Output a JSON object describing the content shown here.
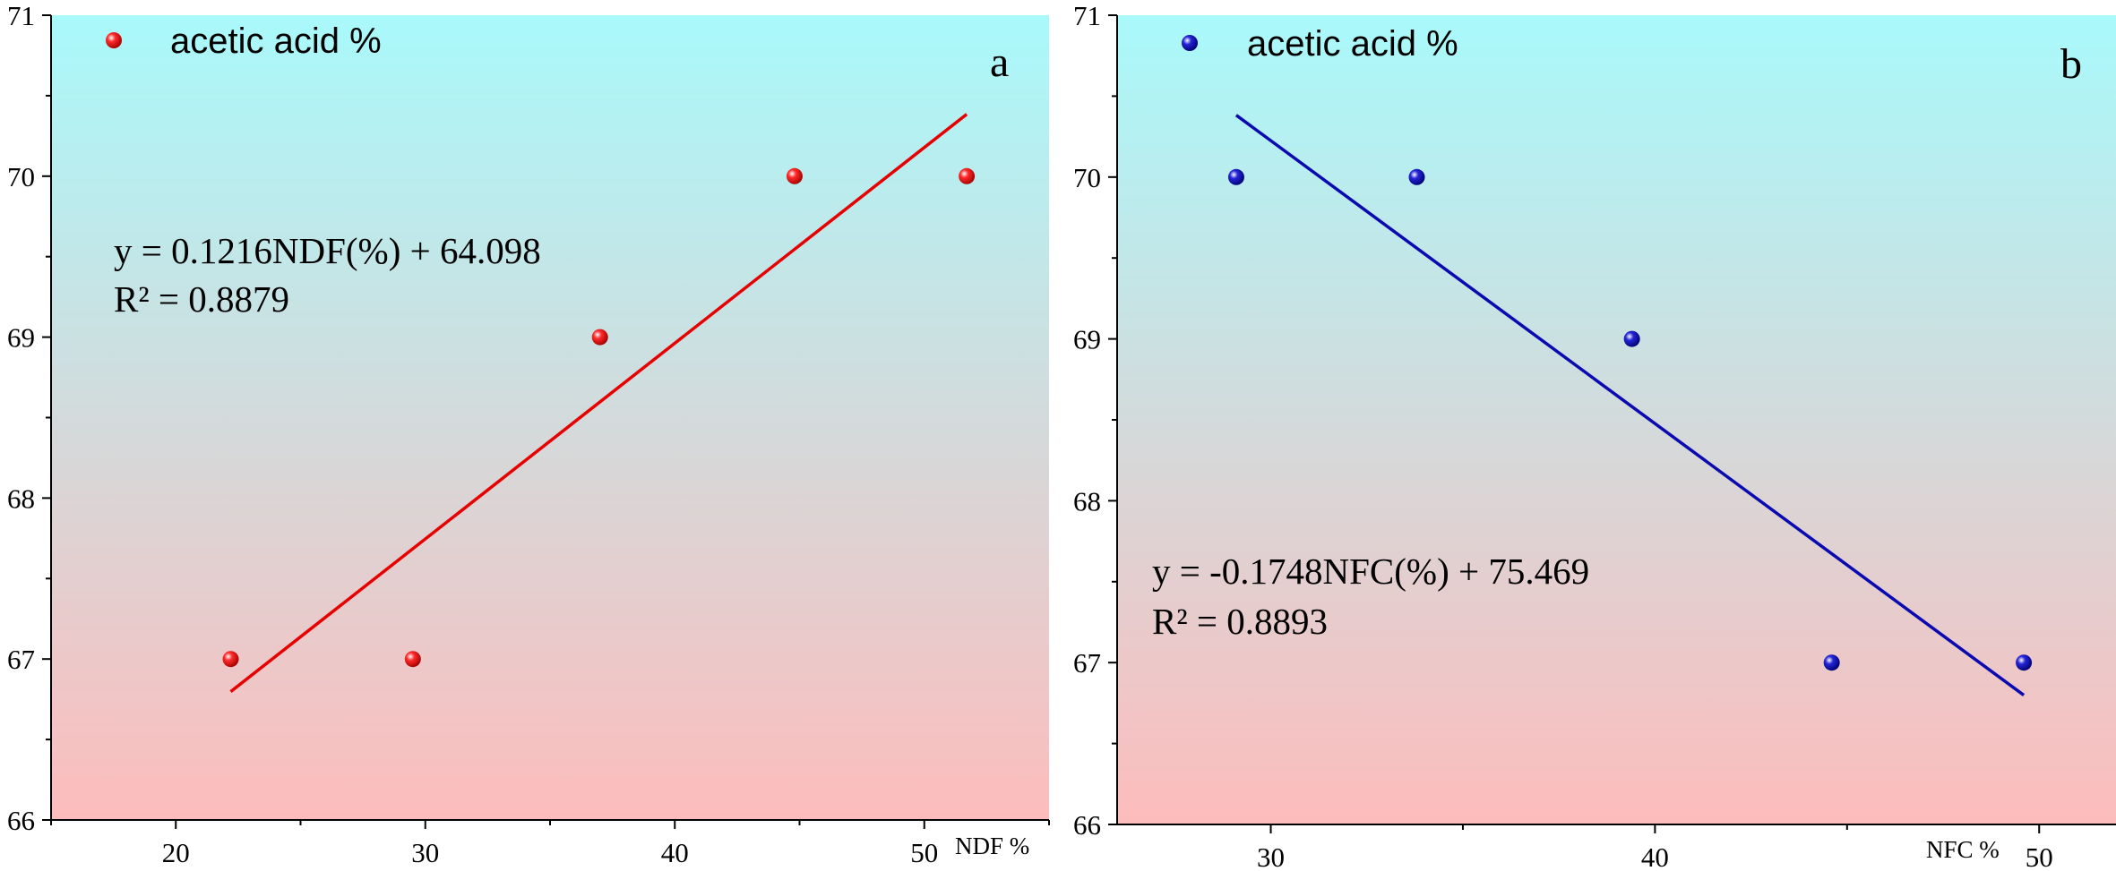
{
  "colors": {
    "bg_top": "#a9f9fb",
    "bg_bottom": "#fdbcbc",
    "series_a": "#e60000",
    "series_b": "#0a0ab0"
  },
  "chart_data": [
    {
      "type": "scatter",
      "panel_label": "a",
      "xlabel": "NDF %",
      "ylabel": "",
      "xlim": [
        15,
        55
      ],
      "ylim": [
        66,
        71
      ],
      "xticks": [
        20,
        30,
        40,
        50
      ],
      "yticks": [
        66,
        67,
        68,
        69,
        70,
        71
      ],
      "grid": false,
      "legend_position": "top-left",
      "series": [
        {
          "name": "acetic acid %",
          "x": [
            22.2,
            29.5,
            37.0,
            44.8,
            51.7
          ],
          "y": [
            67,
            67,
            69,
            70,
            70
          ]
        }
      ],
      "trendline": {
        "slope": 0.1216,
        "intercept": 64.098,
        "x_range": [
          22.2,
          51.7
        ]
      },
      "equation": "y = 0.1216NDF(%) + 64.098",
      "r_squared": "R² = 0.8879"
    },
    {
      "type": "scatter",
      "panel_label": "b",
      "xlabel": "NFC %",
      "ylabel": "",
      "xlim": [
        26,
        52
      ],
      "ylim": [
        66,
        71
      ],
      "xticks": [
        30,
        40,
        50
      ],
      "yticks": [
        66,
        67,
        68,
        69,
        70,
        71
      ],
      "grid": false,
      "legend_position": "top-left",
      "series": [
        {
          "name": "acetic acid %",
          "x": [
            29.1,
            33.8,
            39.4,
            44.6,
            49.6
          ],
          "y": [
            70,
            70,
            69,
            67,
            67
          ]
        }
      ],
      "trendline": {
        "slope": -0.1748,
        "intercept": 75.469,
        "x_range": [
          29.1,
          49.6
        ]
      },
      "equation": "y = -0.1748NFC(%) + 75.469",
      "r_squared": "R² = 0.8893"
    }
  ]
}
